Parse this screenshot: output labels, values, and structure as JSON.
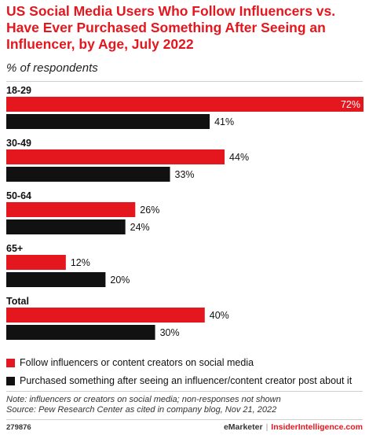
{
  "header": {
    "title": "US Social Media Users Who Follow Influencers vs. Have Ever Purchased Something After Seeing an Influencer, by Age, July 2022",
    "subtitle": "% of respondents"
  },
  "colors": {
    "follow": "#e4161e",
    "purchased": "#111111",
    "accent": "#e4161e"
  },
  "chart_data": {
    "type": "bar",
    "orientation": "horizontal",
    "categories": [
      "18-29",
      "30-49",
      "50-64",
      "65+",
      "Total"
    ],
    "series": [
      {
        "name": "Follow influencers or content creators on social media",
        "values": [
          72,
          44,
          26,
          12,
          40
        ]
      },
      {
        "name": "Purchased something after seeing an influencer/content creator post about it",
        "values": [
          41,
          33,
          24,
          20,
          30
        ]
      }
    ],
    "value_suffix": "%",
    "xlim": [
      0,
      72
    ],
    "grid": false,
    "legend_position": "bottom"
  },
  "legend": {
    "items": [
      {
        "label": "Follow influencers or content creators on social media"
      },
      {
        "label": "Purchased something after seeing an influencer/content creator post about it"
      }
    ]
  },
  "footnote": {
    "note": "Note: influencers or creators on social media; non-responses not shown",
    "source": "Source: Pew Research Center as cited in company blog, Nov 21, 2022"
  },
  "footer": {
    "chart_id": "279876",
    "brand_left": "eMarketer",
    "separator": "|",
    "brand_right": "InsiderIntelligence.com"
  }
}
